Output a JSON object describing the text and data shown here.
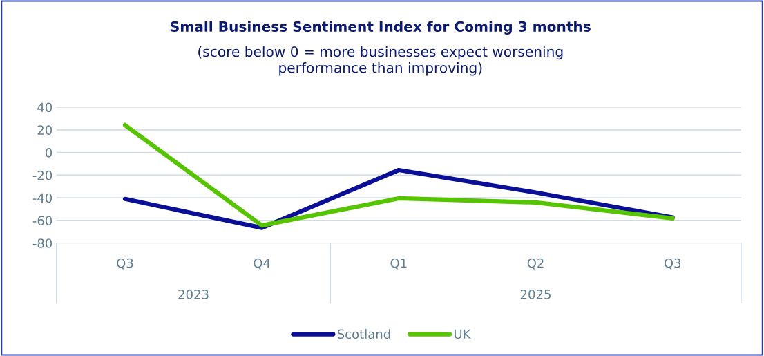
{
  "chart_data": {
    "type": "line",
    "title": "Small Business Sentiment Index for Coming 3 months",
    "subtitle": "(score below 0 = more businesses expect worsening\nperformance than improving)",
    "categories": [
      "Q3",
      "Q4",
      "Q1",
      "Q2",
      "Q3"
    ],
    "annotations": [
      "2023",
      "2025"
    ],
    "series": [
      {
        "name": "Scotland",
        "color": "#0a0f96",
        "values": [
          -41,
          -66.5,
          -15.5,
          -35.3,
          -57.3
        ]
      },
      {
        "name": "UK",
        "color": "#56c400",
        "values": [
          24.2,
          -64.4,
          -40.5,
          -44.1,
          -58.1
        ]
      }
    ],
    "ylim": [
      -80,
      40
    ],
    "yticks": [
      -80,
      -60,
      -40,
      -20,
      0,
      20,
      40
    ],
    "grid": "y",
    "legend": "bottom",
    "marker": "none",
    "line_style": "solid"
  }
}
